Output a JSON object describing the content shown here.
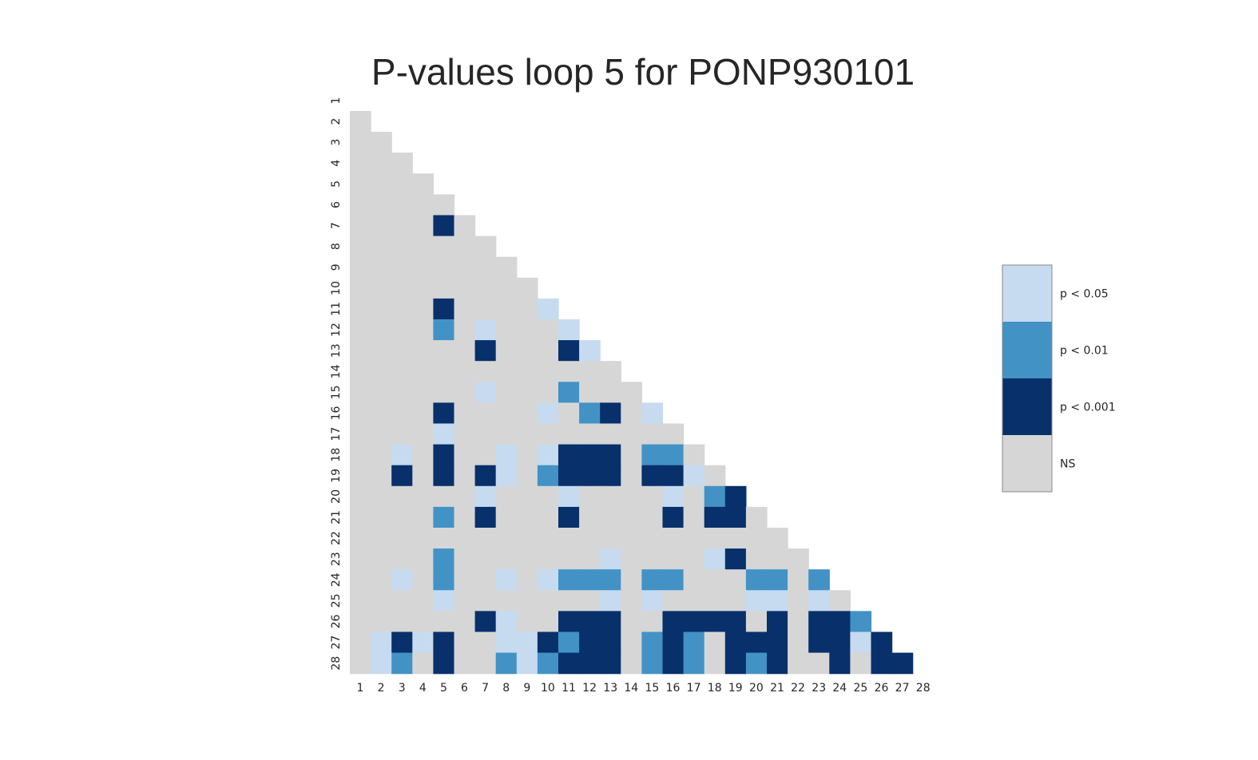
{
  "chart_data": {
    "type": "heatmap",
    "title": "P-values loop 5 for PONP930101",
    "xlabel": "",
    "ylabel": "",
    "x_ticks": [
      "1",
      "2",
      "3",
      "4",
      "5",
      "6",
      "7",
      "8",
      "9",
      "10",
      "11",
      "12",
      "13",
      "14",
      "15",
      "16",
      "17",
      "18",
      "19",
      "20",
      "21",
      "22",
      "23",
      "24",
      "25",
      "26",
      "27",
      "28"
    ],
    "y_ticks": [
      "1",
      "2",
      "3",
      "4",
      "5",
      "6",
      "7",
      "8",
      "9",
      "10",
      "11",
      "12",
      "13",
      "14",
      "15",
      "16",
      "17",
      "18",
      "19",
      "20",
      "21",
      "22",
      "23",
      "24",
      "25",
      "26",
      "27",
      "28"
    ],
    "mask": "lower-triangle (row > column)",
    "levels": [
      {
        "code": 0,
        "label": "NS",
        "color": "#d6d6d6"
      },
      {
        "code": 1,
        "label": "p < 0.05",
        "color": "#c6dbef"
      },
      {
        "code": 2,
        "label": "p < 0.01",
        "color": "#4292c6"
      },
      {
        "code": 3,
        "label": "p < 0.001",
        "color": "#08306b"
      }
    ],
    "legend_order": [
      1,
      2,
      3,
      0
    ],
    "legend_position": "right",
    "grid": false,
    "significant_cells": [
      [
        7,
        5,
        3
      ],
      [
        11,
        5,
        3
      ],
      [
        11,
        10,
        1
      ],
      [
        12,
        5,
        2
      ],
      [
        12,
        7,
        1
      ],
      [
        12,
        11,
        1
      ],
      [
        13,
        7,
        3
      ],
      [
        13,
        11,
        3
      ],
      [
        13,
        12,
        1
      ],
      [
        15,
        7,
        1
      ],
      [
        15,
        11,
        2
      ],
      [
        16,
        5,
        3
      ],
      [
        16,
        10,
        1
      ],
      [
        16,
        12,
        2
      ],
      [
        16,
        13,
        3
      ],
      [
        16,
        15,
        1
      ],
      [
        17,
        5,
        1
      ],
      [
        18,
        3,
        1
      ],
      [
        18,
        5,
        3
      ],
      [
        18,
        8,
        1
      ],
      [
        18,
        10,
        1
      ],
      [
        18,
        11,
        3
      ],
      [
        18,
        12,
        3
      ],
      [
        18,
        13,
        3
      ],
      [
        18,
        15,
        2
      ],
      [
        18,
        16,
        2
      ],
      [
        19,
        3,
        3
      ],
      [
        19,
        5,
        3
      ],
      [
        19,
        7,
        3
      ],
      [
        19,
        8,
        1
      ],
      [
        19,
        10,
        2
      ],
      [
        19,
        11,
        3
      ],
      [
        19,
        12,
        3
      ],
      [
        19,
        13,
        3
      ],
      [
        19,
        15,
        3
      ],
      [
        19,
        16,
        3
      ],
      [
        19,
        17,
        1
      ],
      [
        20,
        7,
        1
      ],
      [
        20,
        11,
        1
      ],
      [
        20,
        16,
        1
      ],
      [
        20,
        18,
        2
      ],
      [
        20,
        19,
        3
      ],
      [
        21,
        5,
        2
      ],
      [
        21,
        7,
        3
      ],
      [
        21,
        11,
        3
      ],
      [
        21,
        16,
        3
      ],
      [
        21,
        18,
        3
      ],
      [
        21,
        19,
        3
      ],
      [
        23,
        5,
        2
      ],
      [
        23,
        13,
        1
      ],
      [
        23,
        18,
        1
      ],
      [
        23,
        19,
        3
      ],
      [
        24,
        3,
        1
      ],
      [
        24,
        5,
        2
      ],
      [
        24,
        8,
        1
      ],
      [
        24,
        10,
        1
      ],
      [
        24,
        11,
        2
      ],
      [
        24,
        12,
        2
      ],
      [
        24,
        13,
        2
      ],
      [
        24,
        15,
        2
      ],
      [
        24,
        16,
        2
      ],
      [
        24,
        20,
        2
      ],
      [
        24,
        21,
        2
      ],
      [
        24,
        23,
        2
      ],
      [
        25,
        5,
        1
      ],
      [
        25,
        13,
        1
      ],
      [
        25,
        15,
        1
      ],
      [
        25,
        20,
        1
      ],
      [
        25,
        21,
        1
      ],
      [
        25,
        23,
        1
      ],
      [
        26,
        7,
        3
      ],
      [
        26,
        8,
        1
      ],
      [
        26,
        11,
        3
      ],
      [
        26,
        12,
        3
      ],
      [
        26,
        13,
        3
      ],
      [
        26,
        16,
        3
      ],
      [
        26,
        17,
        3
      ],
      [
        26,
        18,
        3
      ],
      [
        26,
        19,
        3
      ],
      [
        26,
        21,
        3
      ],
      [
        26,
        23,
        3
      ],
      [
        26,
        24,
        3
      ],
      [
        26,
        25,
        2
      ],
      [
        27,
        2,
        1
      ],
      [
        27,
        3,
        3
      ],
      [
        27,
        4,
        1
      ],
      [
        27,
        5,
        3
      ],
      [
        27,
        8,
        1
      ],
      [
        27,
        9,
        1
      ],
      [
        27,
        10,
        3
      ],
      [
        27,
        11,
        2
      ],
      [
        27,
        12,
        3
      ],
      [
        27,
        13,
        3
      ],
      [
        27,
        15,
        2
      ],
      [
        27,
        16,
        3
      ],
      [
        27,
        17,
        2
      ],
      [
        27,
        19,
        3
      ],
      [
        27,
        20,
        3
      ],
      [
        27,
        21,
        3
      ],
      [
        27,
        23,
        3
      ],
      [
        27,
        24,
        3
      ],
      [
        27,
        25,
        1
      ],
      [
        27,
        26,
        3
      ],
      [
        28,
        2,
        1
      ],
      [
        28,
        3,
        2
      ],
      [
        28,
        5,
        3
      ],
      [
        28,
        8,
        2
      ],
      [
        28,
        9,
        1
      ],
      [
        28,
        10,
        2
      ],
      [
        28,
        11,
        3
      ],
      [
        28,
        12,
        3
      ],
      [
        28,
        13,
        3
      ],
      [
        28,
        15,
        2
      ],
      [
        28,
        16,
        3
      ],
      [
        28,
        17,
        2
      ],
      [
        28,
        19,
        3
      ],
      [
        28,
        20,
        2
      ],
      [
        28,
        21,
        3
      ],
      [
        28,
        24,
        3
      ],
      [
        28,
        26,
        3
      ],
      [
        28,
        27,
        3
      ]
    ]
  }
}
